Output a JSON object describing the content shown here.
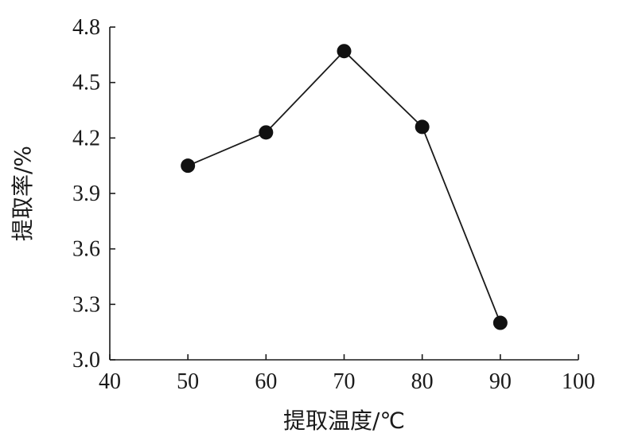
{
  "chart_data": {
    "type": "line",
    "title": "",
    "xlabel": "提取温度/℃",
    "ylabel": "提取率/%",
    "xlim": [
      40,
      100
    ],
    "ylim": [
      3.0,
      4.8
    ],
    "x_ticks": [
      "40",
      "50",
      "60",
      "70",
      "80",
      "90",
      "100"
    ],
    "y_ticks": [
      "3.0",
      "3.3",
      "3.6",
      "3.9",
      "4.2",
      "4.5",
      "4.8"
    ],
    "grid": false,
    "legend": "none",
    "series": [
      {
        "x": [
          50,
          60,
          70,
          80,
          90
        ],
        "values": [
          4.05,
          4.23,
          4.67,
          4.26,
          3.2
        ]
      }
    ],
    "colors": {
      "line": "#1a1a1a",
      "marker": "#111111"
    }
  }
}
